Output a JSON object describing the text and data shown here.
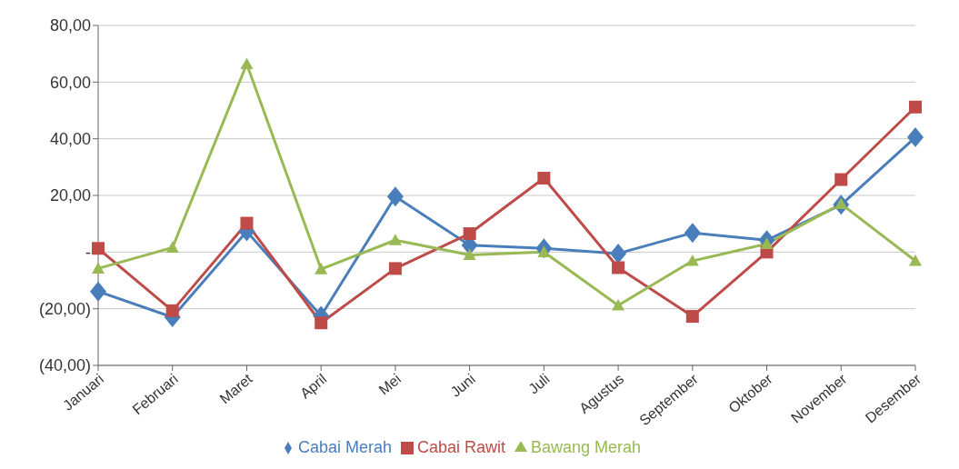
{
  "chart_data": {
    "type": "line",
    "categories": [
      "Januari",
      "Februari",
      "Maret",
      "April",
      "Mei",
      "Juni",
      "Juli",
      "Agustus",
      "September",
      "Oktober",
      "November",
      "Desember"
    ],
    "series": [
      {
        "name": "Cabai Merah",
        "color": "#4a7ebb",
        "marker": "diamond",
        "values": [
          -13.9,
          -23,
          7.3,
          -22.5,
          19.6,
          2.4,
          1.3,
          -0.5,
          6.8,
          4.2,
          16.7,
          40.5
        ]
      },
      {
        "name": "Cabai Rawit",
        "color": "#be4b48",
        "marker": "square",
        "values": [
          1.3,
          -20.7,
          10.2,
          -25,
          -5.8,
          6.5,
          26.1,
          -5.5,
          -22.7,
          0,
          25.6,
          51.2
        ]
      },
      {
        "name": "Bawang Merah",
        "color": "#98b954",
        "marker": "triangle",
        "values": [
          -5.8,
          1.6,
          66.4,
          -6,
          4.2,
          -1,
          0,
          -18.8,
          -3.1,
          2.9,
          17,
          -3.1
        ]
      }
    ],
    "ylim": [
      -40,
      80
    ],
    "yticks": [
      {
        "value": -40,
        "label": "(40,00)"
      },
      {
        "value": -20,
        "label": "(20,00)"
      },
      {
        "value": 0,
        "label": "-"
      },
      {
        "value": 20,
        "label": "20,00"
      },
      {
        "value": 40,
        "label": "40,00"
      },
      {
        "value": 60,
        "label": "60,00"
      },
      {
        "value": 80,
        "label": "80,00"
      }
    ],
    "grid": "y",
    "legend": "bottom",
    "line_style": "solid"
  }
}
